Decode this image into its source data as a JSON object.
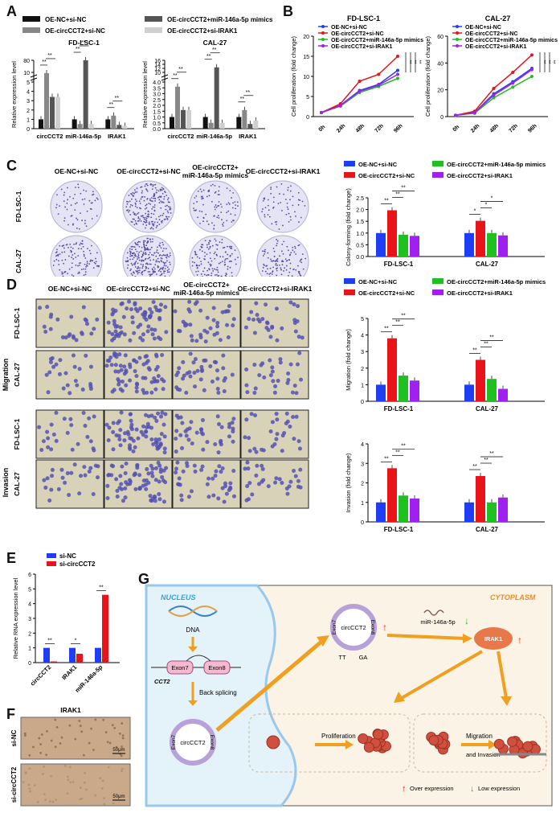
{
  "panels": {
    "A": "A",
    "B": "B",
    "C": "C",
    "D": "D",
    "E": "E",
    "F": "F",
    "G": "G"
  },
  "colors": {
    "black": "#111111",
    "gray": "#888888",
    "darkgray": "#555555",
    "lightgray": "#cfcfcf",
    "blue": "#1f3df5",
    "red": "#e8141a",
    "green": "#20c020",
    "purple": "#a020f0"
  },
  "A": {
    "legend": [
      "OE-NC+si-NC",
      "OE-circCCT2+si-NC",
      "OE-circCCT2+miR-146a-5p mimics",
      "OE-circCCT2+si-IRAK1"
    ],
    "ylabel": "Relative expression level",
    "charts": [
      {
        "title": "FD-LSC-1",
        "categories": [
          "circCCT2",
          "miR-146a-5p",
          "IRAK1"
        ],
        "upper_ticks": [
          "10",
          "80"
        ],
        "lower_ticks": [
          "0",
          "1",
          "2",
          "3",
          "4",
          "5"
        ],
        "values": [
          [
            1,
            5.6,
            3.4,
            3.4
          ],
          [
            1,
            0.5,
            80,
            0.5
          ],
          [
            1,
            1.4,
            0.4,
            0.3
          ]
        ]
      },
      {
        "title": "CAL-27",
        "categories": [
          "circCCT2",
          "miR-146a-5p",
          "IRAK1"
        ],
        "upper_ticks": [
          "10",
          "12",
          "14",
          "16"
        ],
        "lower_ticks": [
          "0.0",
          "0.5",
          "1.0",
          "1.5",
          "2.0",
          "2.5",
          "3.0",
          "3.5",
          "4.0"
        ],
        "values": [
          [
            1,
            3.6,
            1.6,
            1.6
          ],
          [
            1,
            0.5,
            12.5,
            0.5
          ],
          [
            1,
            1.6,
            0.4,
            0.7
          ]
        ]
      }
    ],
    "sig": "**"
  },
  "B": {
    "legend": [
      "OE-NC+si-NC",
      "OE-circCCT2+si-NC",
      "OE-circCCT2+miR-146a-5p mimics",
      "OE-circCCT2+si-IRAK1"
    ],
    "ylabel": "Cell proliferation (fold change)",
    "charts": [
      {
        "title": "FD-LSC-1",
        "x": [
          "0h",
          "24h",
          "48h",
          "72h",
          "96h"
        ],
        "yticks": [
          "0",
          "5",
          "10",
          "15",
          "20"
        ],
        "ymax": 20,
        "series": [
          [
            1,
            2.8,
            6.5,
            8,
            11.5
          ],
          [
            1,
            3.2,
            8.8,
            10.5,
            15
          ],
          [
            1,
            2.6,
            6,
            7.5,
            9.5
          ],
          [
            1,
            2.7,
            6.3,
            7.8,
            10.5
          ]
        ]
      },
      {
        "title": "CAL-27",
        "x": [
          "0h",
          "24h",
          "48h",
          "72h",
          "96h"
        ],
        "yticks": [
          "0",
          "20",
          "40",
          "60"
        ],
        "ymax": 60,
        "series": [
          [
            1,
            3,
            17,
            26,
            36
          ],
          [
            1,
            4,
            21,
            33,
            46
          ],
          [
            1,
            2.5,
            14,
            22,
            30
          ],
          [
            1,
            2.8,
            16,
            25,
            35
          ]
        ]
      }
    ],
    "sig": [
      "**",
      "**",
      "**"
    ]
  },
  "C": {
    "headers": [
      "OE-NC+si-NC",
      "OE-circCCT2+si-NC",
      "OE-circCCT2+\nmiR-146a-5p mimics",
      "OE-circCCT2+si-IRAK1"
    ],
    "rows": [
      "FD-LSC-1",
      "CAL-27"
    ],
    "legend": [
      "OE-NC+si-NC",
      "OE-circCCT2+si-NC",
      "OE-circCCT2+miR-146a-5p mimics",
      "OE-circCCT2+si-IRAK1"
    ],
    "chart": {
      "ylabel": "Colony-forming (fold change)",
      "categories": [
        "FD-LSC-1",
        "CAL-27"
      ],
      "yticks": [
        "0.0",
        "0.5",
        "1.0",
        "1.5",
        "2.0",
        "2.5"
      ],
      "ymax": 2.5,
      "values": [
        [
          1,
          1.97,
          0.93,
          0.88
        ],
        [
          1,
          1.52,
          1.0,
          0.9
        ]
      ],
      "sig": [
        "**",
        "**",
        "**",
        "*",
        "*",
        "*"
      ]
    }
  },
  "D": {
    "headers": [
      "OE-NC+si-NC",
      "OE-circCCT2+si-NC",
      "OE-circCCT2+\nmiR-146a-5p mimics",
      "OE-circCCT2+si-IRAK1"
    ],
    "groups": [
      "Migration",
      "Invasion"
    ],
    "rows": [
      "FD-LSC-1",
      "CAL-27",
      "FD-LSC-1",
      "CAL-27"
    ],
    "legend": [
      "OE-NC+si-NC",
      "OE-circCCT2+si-NC",
      "OE-circCCT2+miR-146a-5p mimics",
      "OE-circCCT2+si-IRAK1"
    ],
    "charts": [
      {
        "ylabel": "Migration (fold change)",
        "categories": [
          "FD-LSC-1",
          "CAL-27"
        ],
        "yticks": [
          "0",
          "1",
          "2",
          "3",
          "4",
          "5"
        ],
        "ymax": 5,
        "values": [
          [
            1,
            3.8,
            1.55,
            1.25
          ],
          [
            1,
            2.5,
            1.35,
            0.75
          ]
        ]
      },
      {
        "ylabel": "Invasion (fold change)",
        "categories": [
          "FD-LSC-1",
          "CAL-27"
        ],
        "yticks": [
          "0",
          "1",
          "2",
          "3",
          "4"
        ],
        "ymax": 4,
        "values": [
          [
            1,
            2.75,
            1.35,
            1.2
          ],
          [
            1,
            2.35,
            1.0,
            1.25
          ]
        ]
      }
    ]
  },
  "E": {
    "legend": [
      "si-NC",
      "si-circCCT2"
    ],
    "ylabel": "Relative RNA expression level",
    "categories": [
      "circCCT2",
      "IRAK1",
      "miR-146a-5p"
    ],
    "yticks": [
      "0",
      "1",
      "2",
      "3",
      "4",
      "5",
      "6"
    ],
    "ymax": 6,
    "values": [
      [
        1,
        0.08
      ],
      [
        1,
        0.6
      ],
      [
        1,
        4.6
      ]
    ],
    "sig": [
      "**",
      "*",
      "**"
    ]
  },
  "F": {
    "title": "IRAK1",
    "rows": [
      "si-NC",
      "si-circCCT2"
    ],
    "scale": "50μm"
  },
  "G": {
    "nucleus": "NUCLEUS",
    "cytoplasm": "CYTOPLASM",
    "dna": "DNA",
    "cct2": "CCT2",
    "exon7": "Exon7",
    "exon8": "Exon8",
    "circ": "circCCT2",
    "back_splicing": "Back splicing",
    "mir": "miR-146a-5p",
    "irak1": "IRAK1",
    "tt": "TT",
    "ga": "GA",
    "proliferation": "Proliferation",
    "migration": "Migration",
    "and_invasion": "and Invasion",
    "over": "Over expression",
    "low": "Low expression"
  }
}
